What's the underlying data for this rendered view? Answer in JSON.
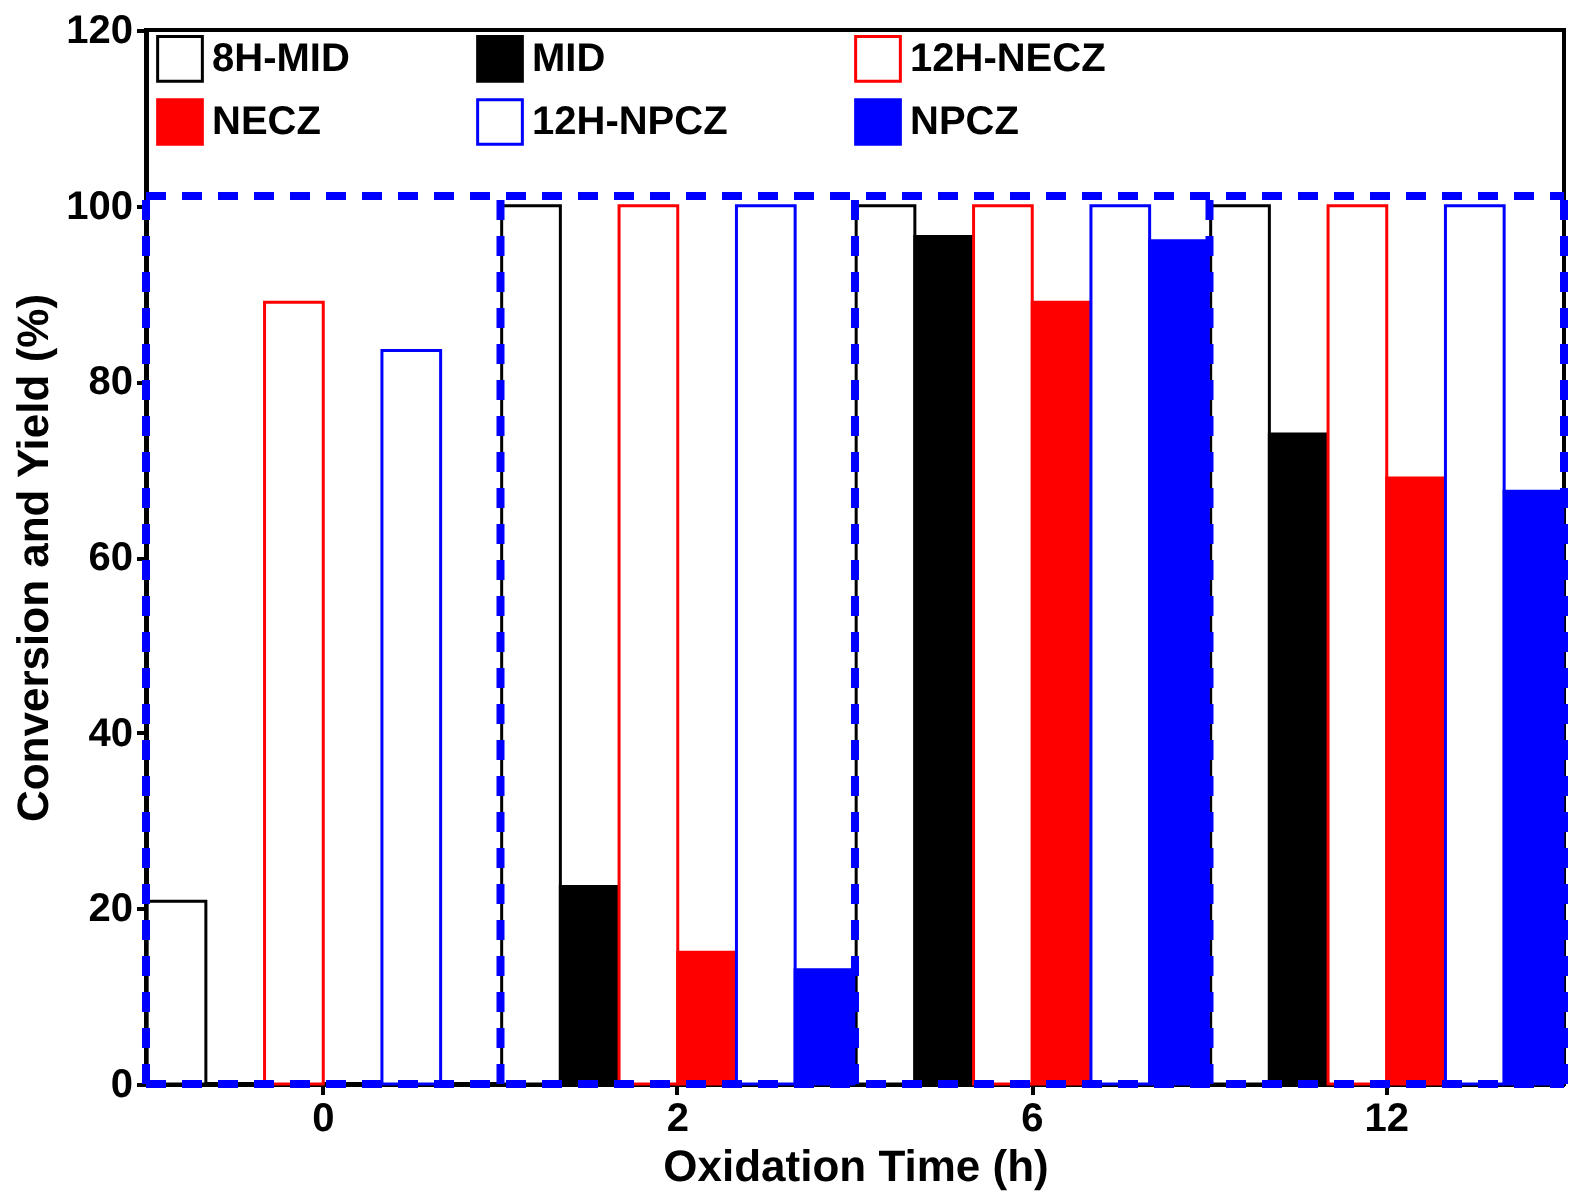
{
  "chart_data": {
    "type": "bar",
    "xlabel": "Oxidation Time (h)",
    "ylabel": "Conversion and Yield (%)",
    "categories": [
      "0",
      "2",
      "6",
      "12"
    ],
    "series": [
      {
        "name": "8H-MID",
        "color": "#000000",
        "values": [
          20.8,
          100,
          100,
          100
        ]
      },
      {
        "name": "MID",
        "color": "#000000",
        "values": [
          null,
          22.5,
          96.5,
          74
        ]
      },
      {
        "name": "12H-NECZ",
        "color": "#ff0000",
        "values": [
          89,
          100,
          100,
          100
        ]
      },
      {
        "name": "NECZ",
        "color": "#ff0000",
        "values": [
          null,
          15,
          89,
          69
        ]
      },
      {
        "name": "12H-NPCZ",
        "color": "#0000ff",
        "values": [
          83.5,
          100,
          100,
          100
        ]
      },
      {
        "name": "NPCZ",
        "color": "#0000ff",
        "values": [
          null,
          13,
          96,
          67.5
        ]
      }
    ],
    "ylim": [
      0,
      120
    ],
    "yticks": [
      0,
      20,
      40,
      60,
      80,
      100,
      120
    ],
    "grid": false,
    "legend": "top"
  }
}
